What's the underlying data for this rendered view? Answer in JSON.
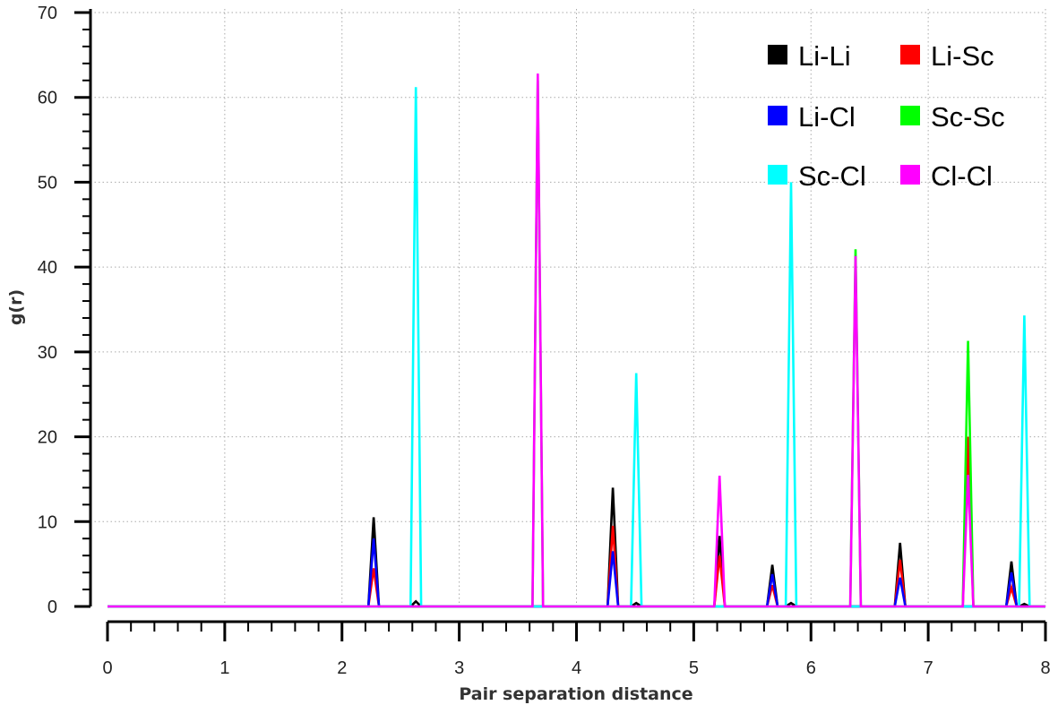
{
  "chart_data": {
    "type": "line",
    "title": "",
    "xlabel": "Pair separation distance",
    "ylabel": "g(r)",
    "xlim": [
      0,
      8
    ],
    "ylim": [
      0,
      70
    ],
    "x_ticks": [
      0,
      1,
      2,
      3,
      4,
      5,
      6,
      7,
      8
    ],
    "x_tick_labels": [
      "0",
      "1",
      "2",
      "3",
      "4",
      "5",
      "6",
      "7",
      "8"
    ],
    "y_ticks": [
      0,
      10,
      20,
      30,
      40,
      50,
      60,
      70
    ],
    "y_tick_labels": [
      "0",
      "10",
      "20",
      "30",
      "40",
      "50",
      "60",
      "70"
    ],
    "grid": true,
    "legend_position": "top-right",
    "peak_half_width": 0.045,
    "series": [
      {
        "name": "Li-Li",
        "color": "#000000",
        "peaks": [
          [
            2.27,
            10.5
          ],
          [
            2.63,
            0.6
          ],
          [
            4.31,
            14.0
          ],
          [
            4.51,
            0.4
          ],
          [
            5.22,
            8.3
          ],
          [
            5.67,
            4.9
          ],
          [
            5.83,
            0.4
          ],
          [
            6.76,
            7.5
          ],
          [
            7.71,
            5.3
          ],
          [
            7.82,
            0.3
          ]
        ]
      },
      {
        "name": "Li-Sc",
        "color": "#ff0000",
        "peaks": [
          [
            2.27,
            4.5
          ],
          [
            4.31,
            9.5
          ],
          [
            5.22,
            6.0
          ],
          [
            5.67,
            2.5
          ],
          [
            6.76,
            5.5
          ],
          [
            7.34,
            20.0
          ],
          [
            7.71,
            2.2
          ]
        ]
      },
      {
        "name": "Li-Cl",
        "color": "#0000ff",
        "peaks": [
          [
            2.27,
            8.0
          ],
          [
            4.31,
            6.5
          ],
          [
            5.67,
            3.8
          ],
          [
            6.76,
            3.4
          ],
          [
            7.71,
            4.0
          ]
        ]
      },
      {
        "name": "Sc-Sc",
        "color": "#00ff00",
        "peaks": [
          [
            3.67,
            62.0
          ],
          [
            6.38,
            42.1
          ],
          [
            7.34,
            31.3
          ]
        ]
      },
      {
        "name": "Sc-Cl",
        "color": "#00ffff",
        "peaks": [
          [
            2.63,
            61.2
          ],
          [
            4.51,
            27.5
          ],
          [
            5.83,
            50.0
          ],
          [
            7.82,
            34.3
          ]
        ]
      },
      {
        "name": "Cl-Cl",
        "color": "#ff00ff",
        "peaks": [
          [
            3.67,
            62.8
          ],
          [
            5.22,
            15.4
          ],
          [
            6.38,
            41.3
          ],
          [
            7.34,
            15.5
          ]
        ]
      }
    ]
  }
}
